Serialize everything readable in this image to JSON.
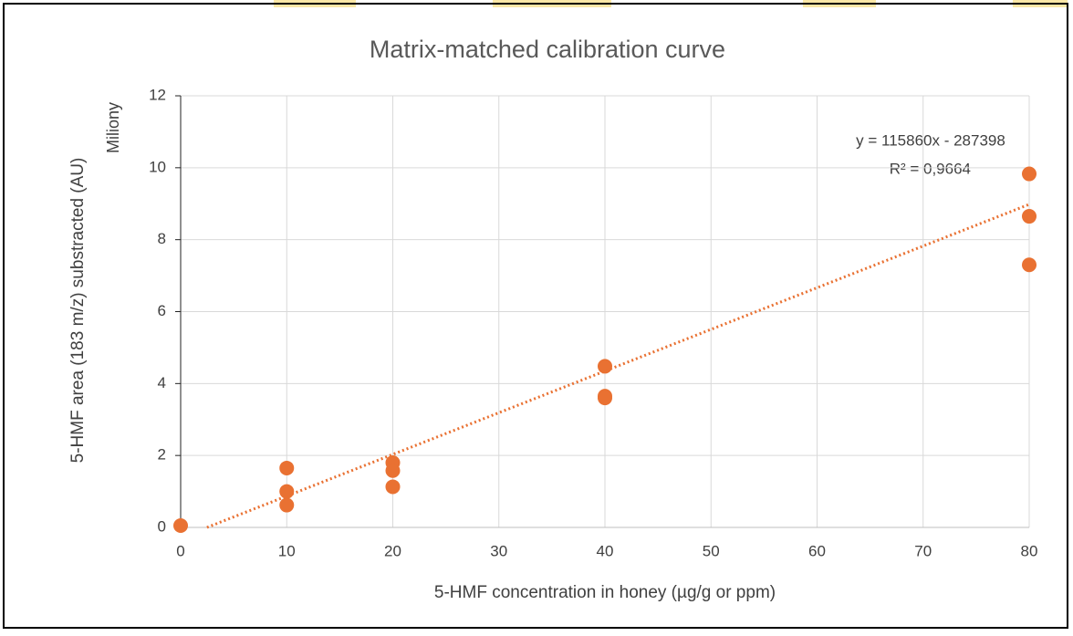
{
  "chart_data": {
    "type": "scatter",
    "title": "Matrix-matched calibration curve",
    "xlabel": "5-HMF concentration in honey (µg/g or ppm)",
    "ylabel": "5-HMF area (183 m/z) substracted (AU)",
    "y_display_units": "Miliony",
    "series": [
      {
        "name": "5-HMF",
        "color": "#e97132",
        "x": [
          0,
          10,
          10,
          10,
          20,
          20,
          20,
          40,
          40,
          40,
          80,
          80,
          80
        ],
        "values": [
          0.05,
          1.65,
          1.0,
          0.62,
          1.8,
          1.58,
          1.13,
          4.48,
          3.65,
          3.6,
          9.83,
          8.65,
          7.3
        ]
      }
    ],
    "trendline": {
      "slope": 0.11586,
      "intercept": -0.287398,
      "color": "#e97132",
      "equation": "y = 115860x - 287398",
      "r2_label": "R² = 0,9664"
    },
    "xlim": [
      0,
      80
    ],
    "xticks": [
      0,
      10,
      20,
      30,
      40,
      50,
      60,
      70,
      80
    ],
    "ylim": [
      0,
      12
    ],
    "yticks": [
      0,
      2,
      4,
      6,
      8,
      10,
      12
    ],
    "grid": true
  }
}
